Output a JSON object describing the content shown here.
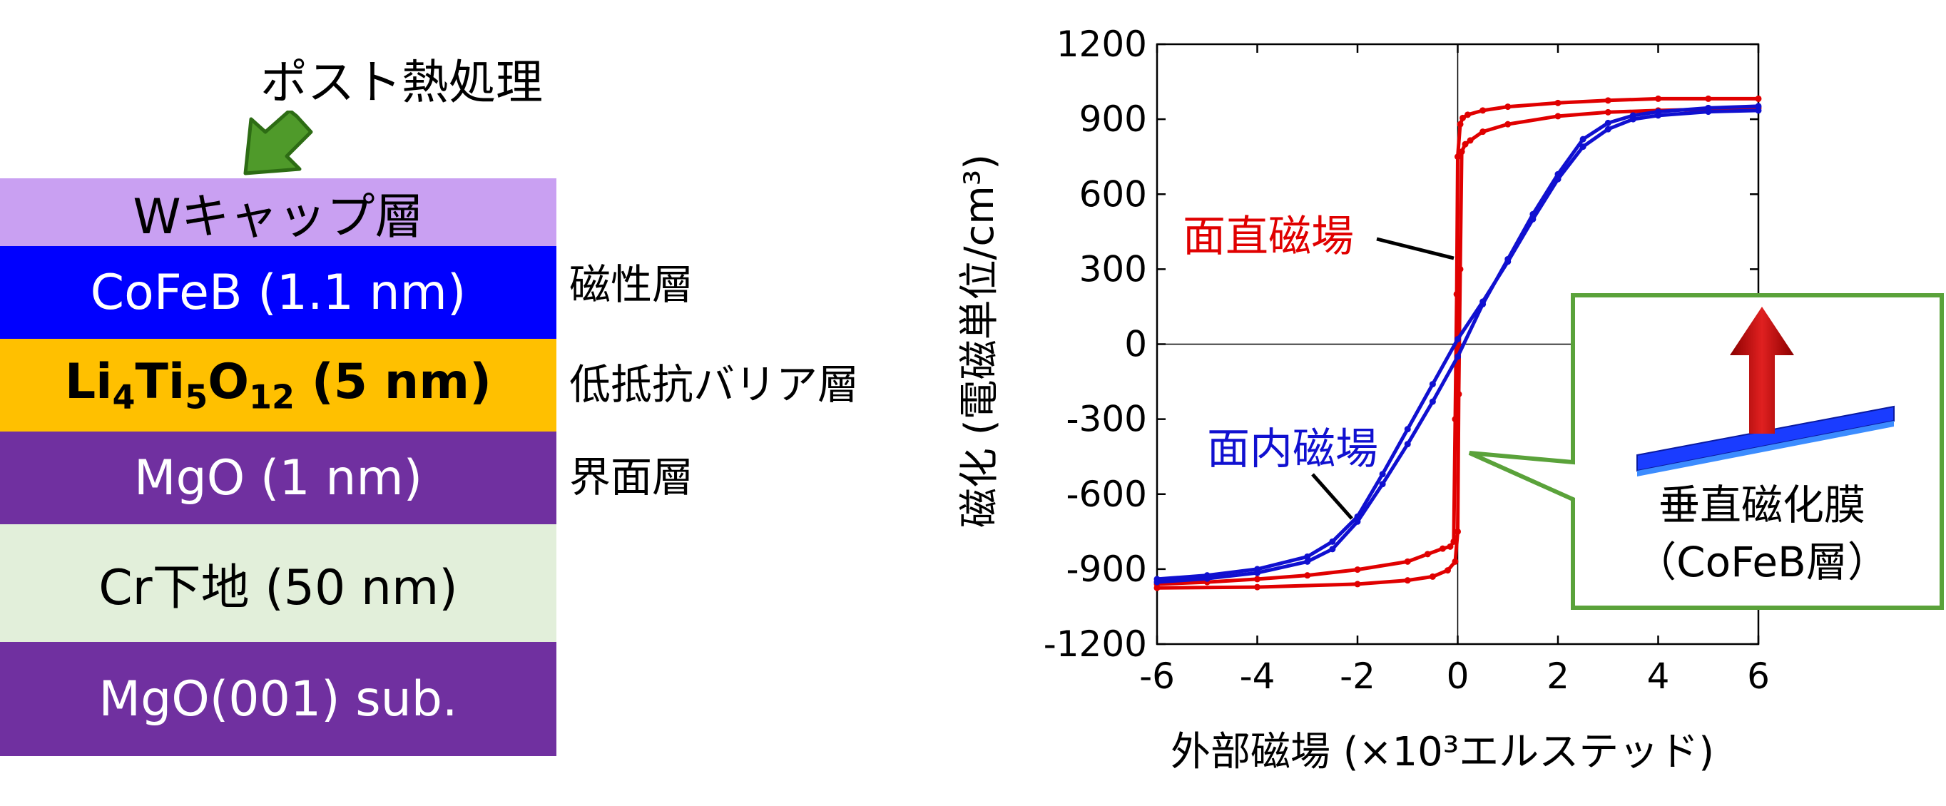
{
  "stack": {
    "post_anneal_label": "ポスト熱処理",
    "layers": [
      {
        "label": "Wキャップ層",
        "color": "#c9a0f2",
        "text_color": "#000000",
        "side_label": ""
      },
      {
        "label": "CoFeB (1.1 nm)",
        "color": "#0000ff",
        "text_color": "#ffffff",
        "side_label": "磁性層"
      },
      {
        "label": "Li4Ti5O12 (5 nm)",
        "color": "#ffc000",
        "text_color": "#000000",
        "side_label": "低抵抗バリア層",
        "parts": {
          "li": "Li",
          "s1": "4",
          "ti": "Ti",
          "s2": "5",
          "o": "O",
          "s3": "12",
          "rest": " (5 nm)"
        }
      },
      {
        "label": "MgO (1 nm)",
        "color": "#7030a0",
        "text_color": "#ffffff",
        "side_label": "界面層"
      },
      {
        "label": "Cr下地 (50 nm)",
        "color": "#e2efda",
        "text_color": "#000000",
        "side_label": ""
      },
      {
        "label": "MgO(001) sub.",
        "color": "#7030a0",
        "text_color": "#ffffff",
        "side_label": ""
      }
    ],
    "arrow_color": "#4f9a2a"
  },
  "chart_data": {
    "type": "line",
    "xlabel": "外部磁場 (×10³エルステッド)",
    "ylabel": "磁化 (電磁単位/cm³)",
    "xlim": [
      -6,
      6
    ],
    "ylim": [
      -1200,
      1200
    ],
    "xticks": [
      "-6",
      "-4",
      "-2",
      "0",
      "2",
      "4",
      "6"
    ],
    "yticks": [
      "1200",
      "900",
      "600",
      "300",
      "0",
      "-300",
      "-600",
      "-900",
      "-1200"
    ],
    "xtick_values": [
      -6,
      -4,
      -2,
      0,
      2,
      4,
      6
    ],
    "ytick_values": [
      1200,
      900,
      600,
      300,
      0,
      -300,
      -600,
      -900,
      -1200
    ],
    "grid": false,
    "series": [
      {
        "name": "面直磁場",
        "color": "#e00000",
        "branch_up": [
          [
            -6,
            -975
          ],
          [
            -4,
            -972
          ],
          [
            -2,
            -960
          ],
          [
            -1,
            -945
          ],
          [
            -0.5,
            -930
          ],
          [
            -0.2,
            -905
          ],
          [
            -0.05,
            -870
          ],
          [
            0.0,
            -750
          ],
          [
            0.02,
            -200
          ],
          [
            0.05,
            300
          ],
          [
            0.08,
            770
          ],
          [
            0.15,
            800
          ],
          [
            0.25,
            815
          ],
          [
            0.5,
            850
          ],
          [
            1,
            880
          ],
          [
            2,
            912
          ],
          [
            3,
            928
          ],
          [
            4,
            935
          ],
          [
            5,
            940
          ],
          [
            6,
            945
          ]
        ],
        "branch_down": [
          [
            6,
            982
          ],
          [
            5,
            982
          ],
          [
            4,
            982
          ],
          [
            3,
            975
          ],
          [
            2,
            965
          ],
          [
            1,
            950
          ],
          [
            0.5,
            935
          ],
          [
            0.2,
            918
          ],
          [
            0.1,
            905
          ],
          [
            0.05,
            880
          ],
          [
            0.0,
            750
          ],
          [
            -0.02,
            200
          ],
          [
            -0.05,
            -300
          ],
          [
            -0.08,
            -790
          ],
          [
            -0.15,
            -810
          ],
          [
            -0.3,
            -818
          ],
          [
            -0.6,
            -840
          ],
          [
            -1,
            -870
          ],
          [
            -2,
            -902
          ],
          [
            -3,
            -925
          ],
          [
            -4,
            -940
          ],
          [
            -5,
            -952
          ],
          [
            -6,
            -960
          ]
        ]
      },
      {
        "name": "面内磁場",
        "color": "#1010d0",
        "branch_up": [
          [
            -6,
            -952
          ],
          [
            -5,
            -938
          ],
          [
            -4,
            -915
          ],
          [
            -3,
            -870
          ],
          [
            -2.5,
            -820
          ],
          [
            -2,
            -710
          ],
          [
            -1.5,
            -560
          ],
          [
            -1,
            -400
          ],
          [
            -0.5,
            -230
          ],
          [
            0,
            -50
          ],
          [
            0.5,
            160
          ],
          [
            1,
            340
          ],
          [
            1.5,
            520
          ],
          [
            2,
            680
          ],
          [
            2.5,
            820
          ],
          [
            3,
            885
          ],
          [
            3.5,
            915
          ],
          [
            4,
            930
          ],
          [
            5,
            945
          ],
          [
            6,
            952
          ]
        ],
        "branch_down": [
          [
            6,
            935
          ],
          [
            5,
            930
          ],
          [
            4,
            915
          ],
          [
            3.5,
            900
          ],
          [
            3,
            860
          ],
          [
            2.5,
            790
          ],
          [
            2,
            660
          ],
          [
            1.5,
            500
          ],
          [
            1,
            330
          ],
          [
            0.5,
            170
          ],
          [
            0,
            20
          ],
          [
            -0.5,
            -160
          ],
          [
            -1,
            -340
          ],
          [
            -1.5,
            -520
          ],
          [
            -2,
            -690
          ],
          [
            -2.5,
            -790
          ],
          [
            -3,
            -850
          ],
          [
            -4,
            -900
          ],
          [
            -5,
            -925
          ],
          [
            -6,
            -940
          ]
        ]
      }
    ],
    "annotations": [
      {
        "text": "面直磁場",
        "color": "#e00000"
      },
      {
        "text": "面内磁場",
        "color": "#1010d0"
      }
    ],
    "inset": {
      "lines": [
        "垂直磁化膜",
        "（CoFeB層）"
      ],
      "border_color": "#5aa23a",
      "film_color": "#1a3cff",
      "arrow_color": "#c00000"
    }
  }
}
